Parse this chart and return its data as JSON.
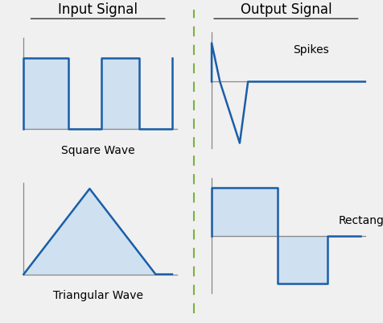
{
  "bg_color": "#f0f0f0",
  "signal_color": "#1a5ea8",
  "fill_color": "#cfe0f0",
  "divider_color": "#7ab040",
  "title_left": "Input Signal",
  "title_right": "Output Signal",
  "label_square": "Square Wave",
  "label_triangular": "Triangular Wave",
  "label_spikes": "Spikes",
  "label_rectangular": "Rectangular",
  "title_fontsize": 12,
  "label_fontsize": 10
}
